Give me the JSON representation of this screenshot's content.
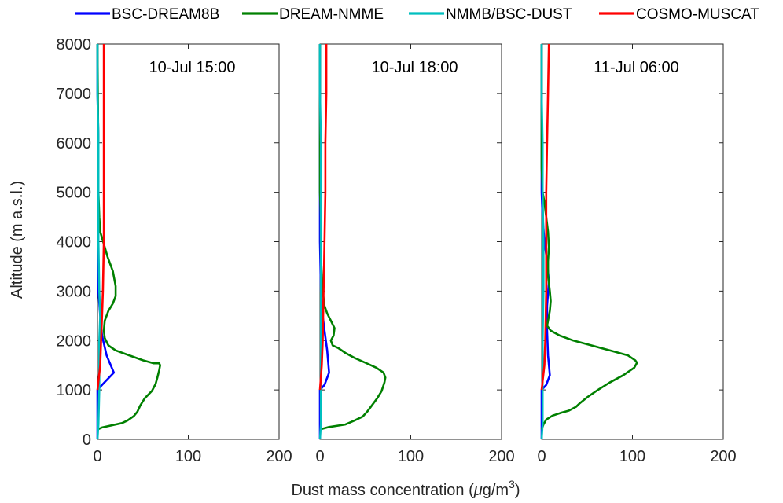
{
  "chart_data": {
    "type": "line",
    "xlabel": "Dust mass concentration (",
    "xlabel_mu": "μ",
    "xlabel_unit": "g/m",
    "xlabel_sup": "3",
    "xlabel_close": ")",
    "ylabel": "Altitude (m a.s.l.)",
    "xlim": [
      0,
      200
    ],
    "ylim": [
      0,
      8000
    ],
    "xticks": [
      0,
      100,
      200
    ],
    "yticks": [
      0,
      1000,
      2000,
      3000,
      4000,
      5000,
      6000,
      7000,
      8000
    ],
    "legend": [
      {
        "name": "BSC-DREAM8B",
        "color": "#0000ff"
      },
      {
        "name": "DREAM-NMME",
        "color": "#008000"
      },
      {
        "name": "NMMB/BSC-DUST",
        "color": "#00bfbf"
      },
      {
        "name": "COSMO-MUSCAT",
        "color": "#ff0000"
      }
    ],
    "panels": [
      {
        "title": "10-Jul 15:00",
        "series": [
          {
            "name": "BSC-DREAM8B",
            "color": "#0000ff",
            "points": [
              [
                0,
                0
              ],
              [
                0,
                1000
              ],
              [
                5,
                1100
              ],
              [
                18,
                1350
              ],
              [
                10,
                1700
              ],
              [
                5,
                2100
              ],
              [
                3,
                2500
              ],
              [
                1,
                3000
              ],
              [
                1,
                4000
              ],
              [
                1,
                5000
              ],
              [
                1,
                6000
              ],
              [
                0,
                7000
              ],
              [
                0,
                8000
              ]
            ]
          },
          {
            "name": "DREAM-NMME",
            "color": "#008000",
            "points": [
              [
                0,
                200
              ],
              [
                5,
                240
              ],
              [
                27,
                330
              ],
              [
                33,
                380
              ],
              [
                40,
                470
              ],
              [
                44,
                560
              ],
              [
                47,
                680
              ],
              [
                52,
                830
              ],
              [
                60,
                980
              ],
              [
                64,
                1120
              ],
              [
                66,
                1250
              ],
              [
                68,
                1400
              ],
              [
                69,
                1500
              ],
              [
                68,
                1540
              ],
              [
                62,
                1540
              ],
              [
                50,
                1600
              ],
              [
                35,
                1700
              ],
              [
                20,
                1800
              ],
              [
                12,
                1900
              ],
              [
                8,
                2050
              ],
              [
                7,
                2200
              ],
              [
                8,
                2400
              ],
              [
                12,
                2600
              ],
              [
                17,
                2750
              ],
              [
                20,
                2900
              ],
              [
                20,
                3100
              ],
              [
                17,
                3400
              ],
              [
                11,
                3700
              ],
              [
                7,
                3950
              ],
              [
                3,
                4200
              ],
              [
                2,
                4500
              ],
              [
                1,
                5000
              ],
              [
                1,
                5500
              ],
              [
                0,
                8000
              ]
            ]
          },
          {
            "name": "NMMB/BSC-DUST",
            "color": "#00bfbf",
            "points": [
              [
                0,
                0
              ],
              [
                1,
                300
              ],
              [
                2,
                1000
              ],
              [
                2,
                2000
              ],
              [
                3,
                2500
              ],
              [
                2,
                3000
              ],
              [
                1,
                4000
              ],
              [
                1,
                5000
              ],
              [
                1,
                6000
              ],
              [
                0,
                7000
              ],
              [
                0,
                8000
              ]
            ]
          },
          {
            "name": "COSMO-MUSCAT",
            "color": "#ff0000",
            "points": [
              [
                0,
                1000
              ],
              [
                3,
                1500
              ],
              [
                4,
                2000
              ],
              [
                5,
                2500
              ],
              [
                6,
                3000
              ],
              [
                7,
                4000
              ],
              [
                7,
                5000
              ],
              [
                7,
                6000
              ],
              [
                7,
                7000
              ],
              [
                7,
                8000
              ]
            ]
          }
        ]
      },
      {
        "title": "10-Jul 18:00",
        "series": [
          {
            "name": "BSC-DREAM8B",
            "color": "#0000ff",
            "points": [
              [
                0,
                0
              ],
              [
                0,
                1000
              ],
              [
                5,
                1100
              ],
              [
                10,
                1350
              ],
              [
                8,
                1800
              ],
              [
                5,
                2200
              ],
              [
                3,
                2500
              ],
              [
                1,
                3000
              ],
              [
                0,
                4000
              ],
              [
                0,
                5000
              ],
              [
                0,
                8000
              ]
            ]
          },
          {
            "name": "DREAM-NMME",
            "color": "#008000",
            "points": [
              [
                0,
                200
              ],
              [
                10,
                250
              ],
              [
                28,
                300
              ],
              [
                38,
                380
              ],
              [
                47,
                460
              ],
              [
                52,
                560
              ],
              [
                57,
                680
              ],
              [
                63,
                830
              ],
              [
                68,
                980
              ],
              [
                71,
                1150
              ],
              [
                72,
                1250
              ],
              [
                70,
                1350
              ],
              [
                62,
                1450
              ],
              [
                50,
                1550
              ],
              [
                38,
                1650
              ],
              [
                28,
                1750
              ],
              [
                20,
                1850
              ],
              [
                14,
                1900
              ],
              [
                12,
                2000
              ],
              [
                15,
                2100
              ],
              [
                16,
                2250
              ],
              [
                12,
                2400
              ],
              [
                8,
                2550
              ],
              [
                5,
                2700
              ],
              [
                3,
                3000
              ],
              [
                2,
                3300
              ],
              [
                1,
                3700
              ],
              [
                1,
                4500
              ],
              [
                0,
                5000
              ],
              [
                0,
                8000
              ]
            ]
          },
          {
            "name": "NMMB/BSC-DUST",
            "color": "#00bfbf",
            "points": [
              [
                0,
                0
              ],
              [
                1,
                300
              ],
              [
                1,
                1000
              ],
              [
                1,
                2000
              ],
              [
                1,
                3000
              ],
              [
                1,
                4000
              ],
              [
                1,
                5000
              ],
              [
                1,
                6000
              ],
              [
                0,
                7000
              ],
              [
                0,
                8000
              ]
            ]
          },
          {
            "name": "COSMO-MUSCAT",
            "color": "#ff0000",
            "points": [
              [
                0,
                1000
              ],
              [
                2,
                1500
              ],
              [
                3,
                2000
              ],
              [
                4,
                3000
              ],
              [
                5,
                4000
              ],
              [
                6,
                5000
              ],
              [
                6,
                6000
              ],
              [
                7,
                7000
              ],
              [
                7,
                8000
              ]
            ]
          }
        ]
      },
      {
        "title": "11-Jul 06:00",
        "series": [
          {
            "name": "BSC-DREAM8B",
            "color": "#0000ff",
            "points": [
              [
                0,
                0
              ],
              [
                0,
                1000
              ],
              [
                5,
                1100
              ],
              [
                9,
                1300
              ],
              [
                7,
                1700
              ],
              [
                6,
                2200
              ],
              [
                6,
                2700
              ],
              [
                8,
                3200
              ],
              [
                6,
                3600
              ],
              [
                3,
                4000
              ],
              [
                1,
                4500
              ],
              [
                0,
                5000
              ],
              [
                0,
                8000
              ]
            ]
          },
          {
            "name": "DREAM-NMME",
            "color": "#008000",
            "points": [
              [
                0,
                200
              ],
              [
                2,
                300
              ],
              [
                5,
                400
              ],
              [
                12,
                480
              ],
              [
                22,
                540
              ],
              [
                30,
                580
              ],
              [
                38,
                660
              ],
              [
                42,
                730
              ],
              [
                50,
                850
              ],
              [
                62,
                1000
              ],
              [
                75,
                1150
              ],
              [
                90,
                1300
              ],
              [
                102,
                1450
              ],
              [
                105,
                1550
              ],
              [
                103,
                1600
              ],
              [
                95,
                1700
              ],
              [
                75,
                1800
              ],
              [
                55,
                1900
              ],
              [
                35,
                2000
              ],
              [
                20,
                2100
              ],
              [
                10,
                2200
              ],
              [
                6,
                2300
              ],
              [
                7,
                2400
              ],
              [
                9,
                2600
              ],
              [
                10,
                2800
              ],
              [
                9,
                3000
              ],
              [
                7,
                3300
              ],
              [
                7,
                3600
              ],
              [
                8,
                3900
              ],
              [
                7,
                4200
              ],
              [
                5,
                4500
              ],
              [
                3,
                4800
              ],
              [
                1,
                5000
              ],
              [
                0,
                5500
              ],
              [
                0,
                8000
              ]
            ]
          },
          {
            "name": "NMMB/BSC-DUST",
            "color": "#00bfbf",
            "points": [
              [
                0,
                0
              ],
              [
                1,
                300
              ],
              [
                1,
                1000
              ],
              [
                1,
                2000
              ],
              [
                2,
                3000
              ],
              [
                2,
                4000
              ],
              [
                1,
                5000
              ],
              [
                1,
                6000
              ],
              [
                0,
                7000
              ],
              [
                0,
                8000
              ]
            ]
          },
          {
            "name": "COSMO-MUSCAT",
            "color": "#ff0000",
            "points": [
              [
                0,
                1000
              ],
              [
                3,
                1500
              ],
              [
                4,
                2000
              ],
              [
                5,
                3000
              ],
              [
                5,
                4000
              ],
              [
                5,
                5000
              ],
              [
                6,
                6000
              ],
              [
                7,
                7000
              ],
              [
                8,
                8000
              ]
            ]
          }
        ]
      }
    ]
  }
}
